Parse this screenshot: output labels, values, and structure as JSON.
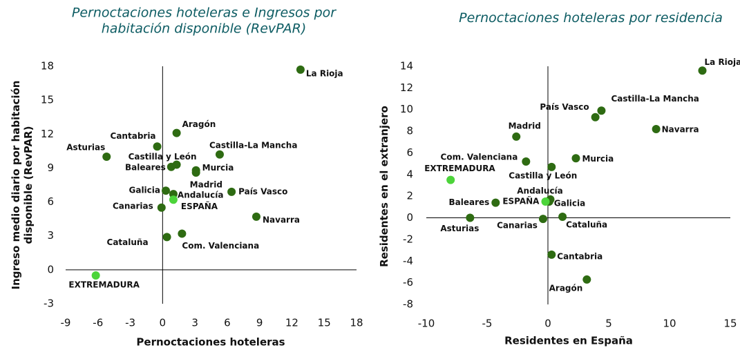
{
  "chart_data": [
    {
      "type": "scatter",
      "title": "Pernoctaciones hoteleras e Ingresos por habitación disponible (RevPAR)",
      "xlabel": "Pernoctaciones hoteleras",
      "ylabel": "Ingreso medio diario por habitación disponible (RevPAR)",
      "labels": [
        "La Rioja",
        "Aragón",
        "Cantabria",
        "Asturias",
        "Castilla-La Mancha",
        "Castilla y León",
        "Baleares",
        "Murcia",
        "Madrid",
        "País Vasco",
        "Galicia",
        "Andalucía",
        "ESPAÑA",
        "Canarias",
        "Navarra",
        "Com. Valenciana",
        "Cataluña",
        "EXTREMADURA"
      ],
      "x": [
        12.8,
        1.3,
        -0.5,
        -5.2,
        5.3,
        1.3,
        0.8,
        3.1,
        3.1,
        6.4,
        0.3,
        1.0,
        1.0,
        -0.1,
        8.7,
        1.8,
        0.4,
        -6.2
      ],
      "y": [
        17.7,
        12.1,
        10.9,
        10.0,
        10.2,
        9.3,
        9.1,
        8.8,
        8.6,
        6.9,
        7.0,
        6.7,
        6.2,
        5.5,
        4.7,
        3.2,
        2.9,
        -0.5
      ],
      "colors": [
        "#2e6b12",
        "#2e6b12",
        "#2e6b12",
        "#2e6b12",
        "#2e6b12",
        "#2e6b12",
        "#2e6b12",
        "#2e6b12",
        "#2e6b12",
        "#2e6b12",
        "#2e6b12",
        "#2e6b12",
        "#4cd43a",
        "#2e6b12",
        "#2e6b12",
        "#2e6b12",
        "#2e6b12",
        "#4cd43a"
      ],
      "xlim": [
        -9,
        18
      ],
      "xticks": [
        -9,
        -6,
        -3,
        0,
        3,
        6,
        9,
        12,
        15,
        18
      ],
      "ylim": [
        -3,
        18
      ],
      "yticks": [
        -3,
        0,
        3,
        6,
        9,
        12,
        15,
        18
      ]
    },
    {
      "type": "scatter",
      "title": "Pernoctaciones hoteleras por residencia",
      "xlabel": "Residentes en España",
      "ylabel": "Residentes en el extranjero",
      "labels": [
        "La Rioja",
        "Castilla-La Mancha",
        "País Vasco",
        "Navarra",
        "Madrid",
        "Com. Valenciana",
        "Murcia",
        "Castilla y León",
        "EXTREMADURA",
        "Andalucía",
        "Galicia",
        "ESPAÑA",
        "Baleares",
        "Asturias",
        "Canarias",
        "Cataluña",
        "Cantabria",
        "Aragón"
      ],
      "x": [
        12.7,
        4.4,
        3.9,
        8.9,
        -2.6,
        -1.8,
        2.3,
        0.3,
        -8.0,
        0.2,
        0.1,
        -0.2,
        -4.3,
        -6.4,
        -0.4,
        1.2,
        0.3,
        3.2
      ],
      "y": [
        13.6,
        9.9,
        9.3,
        8.2,
        7.5,
        5.2,
        5.5,
        4.7,
        3.5,
        1.7,
        1.5,
        1.5,
        1.4,
        0,
        -0.1,
        0.1,
        -3.4,
        -5.7
      ],
      "colors": [
        "#2e6b12",
        "#2e6b12",
        "#2e6b12",
        "#2e6b12",
        "#2e6b12",
        "#2e6b12",
        "#2e6b12",
        "#2e6b12",
        "#4cd43a",
        "#2e6b12",
        "#2e6b12",
        "#4cd43a",
        "#2e6b12",
        "#2e6b12",
        "#2e6b12",
        "#2e6b12",
        "#2e6b12",
        "#2e6b12"
      ],
      "xlim": [
        -10,
        15
      ],
      "xticks": [
        -10,
        -5,
        0,
        5,
        10,
        15
      ],
      "ylim": [
        -8,
        14
      ],
      "yticks": [
        -8,
        -6,
        -4,
        -2,
        0,
        2,
        4,
        6,
        8,
        10,
        12,
        14
      ]
    }
  ]
}
